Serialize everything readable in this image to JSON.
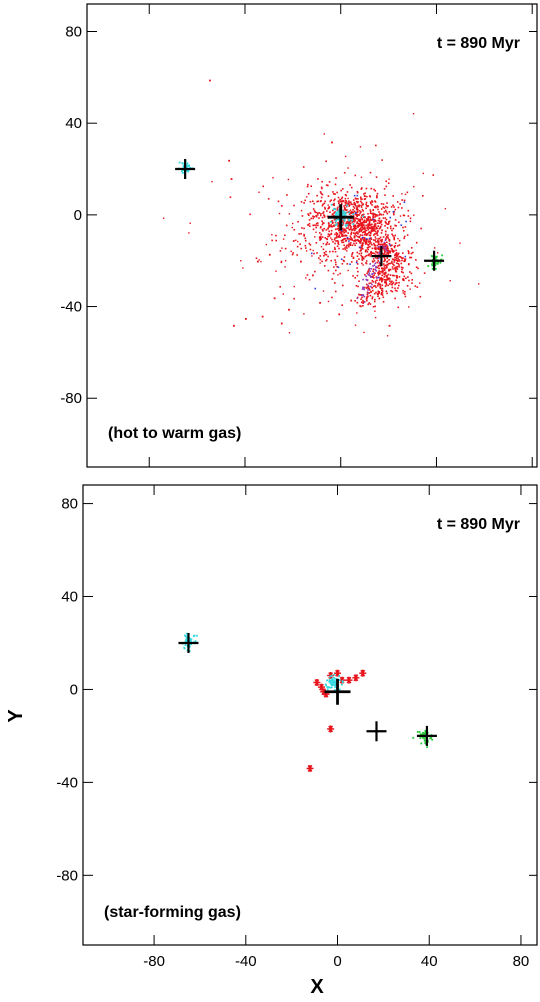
{
  "chart_data": [
    {
      "type": "scatter",
      "panel_label": "(hot to warm gas)",
      "time_label": "t = 890 Myr",
      "xlabel": "",
      "ylabel": "",
      "xlim": [
        -106,
        82
      ],
      "ylim": [
        -110,
        92
      ],
      "xticks": [
        -80,
        -40,
        0,
        40,
        80
      ],
      "yticks": [
        -80,
        -40,
        0,
        40,
        80
      ],
      "show_x_tick_labels": false,
      "grid": false,
      "colors": {
        "red": "#e8141c",
        "cyan": "#30d8e0",
        "green": "#27c93a",
        "blue": "#3040e0",
        "purple": "#8a3ab8",
        "black": "#000000"
      },
      "crosses": [
        {
          "x": -65,
          "y": 20,
          "size": "medium"
        },
        {
          "x": 0,
          "y": -1,
          "size": "large"
        },
        {
          "x": 17,
          "y": -18,
          "size": "medium"
        },
        {
          "x": 39,
          "y": -20,
          "size": "medium"
        }
      ],
      "clumps": [
        {
          "x": -65,
          "y": 21,
          "color": "cyan",
          "r": 3
        },
        {
          "x": 0,
          "y": 0,
          "color": "cyan",
          "r": 6
        },
        {
          "x": 39,
          "y": -20,
          "color": "green",
          "r": 3
        }
      ],
      "stray_points": [
        {
          "x": -55,
          "y": 59
        },
        {
          "x": -47,
          "y": 24
        },
        {
          "x": -46,
          "y": 16
        },
        {
          "x": -4,
          "y": 32
        },
        {
          "x": -45,
          "y": -48
        },
        {
          "x": -40,
          "y": -45
        },
        {
          "x": -33,
          "y": -44
        },
        {
          "x": -25,
          "y": -47
        },
        {
          "x": -22,
          "y": -41
        },
        {
          "x": -28,
          "y": -36
        },
        {
          "x": -35,
          "y": -20
        },
        {
          "x": -30,
          "y": -17
        },
        {
          "x": -20,
          "y": -11
        },
        {
          "x": -14,
          "y": -4
        },
        {
          "x": -17,
          "y": -20
        },
        {
          "x": -12,
          "y": -26
        },
        {
          "x": -9,
          "y": -38
        },
        {
          "x": -1,
          "y": -43
        },
        {
          "x": 4,
          "y": -37
        },
        {
          "x": 20,
          "y": -48
        }
      ]
    },
    {
      "type": "scatter",
      "panel_label": "(star-forming gas)",
      "time_label": "t = 890 Myr",
      "xlabel": "X",
      "ylabel": "Y",
      "xlim": [
        -111,
        87
      ],
      "ylim": [
        -110,
        88
      ],
      "xticks": [
        -80,
        -40,
        0,
        40,
        80
      ],
      "yticks": [
        -80,
        -40,
        0,
        40,
        80
      ],
      "show_x_tick_labels": true,
      "grid": false,
      "colors": {
        "red": "#e8141c",
        "cyan": "#30d8e0",
        "green": "#27c93a",
        "black": "#000000"
      },
      "crosses": [
        {
          "x": -65,
          "y": 20,
          "size": "medium"
        },
        {
          "x": 0,
          "y": -1,
          "size": "large"
        },
        {
          "x": 17,
          "y": -18,
          "size": "medium"
        },
        {
          "x": 39,
          "y": -20,
          "size": "medium"
        }
      ],
      "clumps": [
        {
          "x": -65,
          "y": 21,
          "color": "cyan",
          "r": 4
        },
        {
          "x": -2,
          "y": 3,
          "color": "cyan",
          "r": 4
        },
        {
          "x": 38,
          "y": -20,
          "color": "green",
          "r": 4
        }
      ],
      "star_points": [
        {
          "x": -9,
          "y": 3
        },
        {
          "x": -7,
          "y": 1
        },
        {
          "x": -5,
          "y": -2
        },
        {
          "x": -3,
          "y": 6
        },
        {
          "x": 0,
          "y": 7
        },
        {
          "x": 2,
          "y": 4
        },
        {
          "x": 5,
          "y": 4
        },
        {
          "x": 8,
          "y": 5
        },
        {
          "x": 11,
          "y": 7
        },
        {
          "x": -3,
          "y": -17
        },
        {
          "x": -12,
          "y": -34
        },
        {
          "x": -6,
          "y": -1
        }
      ]
    }
  ]
}
